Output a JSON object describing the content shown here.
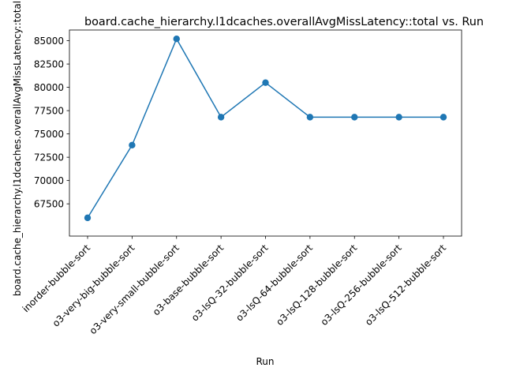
{
  "chart_data": {
    "type": "line",
    "title": "board.cache_hierarchy.l1dcaches.overallAvgMissLatency::total vs. Run",
    "xlabel": "Run",
    "ylabel": "board.cache_hierarchy.l1dcaches.overallAvgMissLatency::total",
    "categories": [
      "inorder-bubble-sort",
      "o3-very-big-bubble-sort",
      "o3-very-small-bubble-sort",
      "o3-base-bubble-sort",
      "o3-lsQ-32-bubble-sort",
      "o3-lsQ-64-bubble-sort",
      "o3-lsQ-128-bubble-sort",
      "o3-lsQ-256-bubble-sort",
      "o3-lsQ-512-bubble-sort"
    ],
    "series": [
      {
        "values": [
          66000,
          73800,
          85200,
          76800,
          80500,
          76800,
          76800,
          76800,
          76800
        ],
        "color": "#1f77b4",
        "marker": "circle"
      }
    ],
    "yticks": [
      67500,
      70000,
      72500,
      75000,
      77500,
      80000,
      82500,
      85000
    ],
    "ylim": [
      64040,
      86150
    ],
    "grid": false,
    "legend": false
  }
}
